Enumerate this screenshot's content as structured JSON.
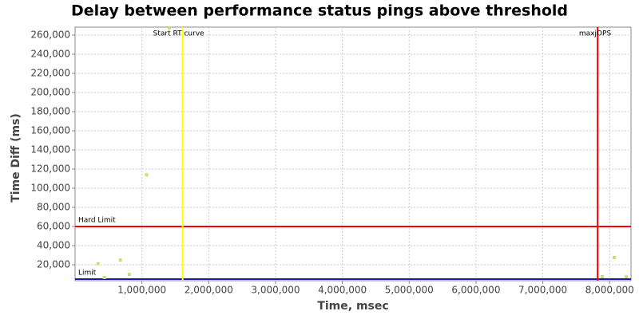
{
  "chart_data": {
    "type": "scatter",
    "title": "Delay between performance status pings above threshold",
    "x_label": "Time, msec",
    "y_label": "Time Diff (ms)",
    "xlim": [
      0,
      8320000
    ],
    "ylim": [
      3333,
      268333
    ],
    "xticks": [
      {
        "value": 1000000,
        "label": "1,000,000"
      },
      {
        "value": 2000000,
        "label": "2,000,000"
      },
      {
        "value": 3000000,
        "label": "3,000,000"
      },
      {
        "value": 4000000,
        "label": "4,000,000"
      },
      {
        "value": 5000000,
        "label": "5,000,000"
      },
      {
        "value": 6000000,
        "label": "6,000,000"
      },
      {
        "value": 7000000,
        "label": "7,000,000"
      },
      {
        "value": 8000000,
        "label": "8,000,000"
      }
    ],
    "yticks": [
      {
        "value": 20000,
        "label": "20,000"
      },
      {
        "value": 40000,
        "label": "40,000"
      },
      {
        "value": 60000,
        "label": "60,000"
      },
      {
        "value": 80000,
        "label": "80,000"
      },
      {
        "value": 100000,
        "label": "100,000"
      },
      {
        "value": 120000,
        "label": "120,000"
      },
      {
        "value": 140000,
        "label": "140,000"
      },
      {
        "value": 160000,
        "label": "160,000"
      },
      {
        "value": 180000,
        "label": "180,000"
      },
      {
        "value": 200000,
        "label": "200,000"
      },
      {
        "value": 220000,
        "label": "220,000"
      },
      {
        "value": 240000,
        "label": "240,000"
      },
      {
        "value": 260000,
        "label": "260,000"
      }
    ],
    "grid": true,
    "series": [
      {
        "color": "#c8e06e",
        "x": [
          343000,
          439000,
          677000,
          810000,
          1070000,
          1410000,
          7890000,
          8070000,
          8250000
        ],
        "values": [
          21000,
          6700,
          25000,
          10000,
          114000,
          267500,
          7500,
          27500,
          7500
        ]
      }
    ],
    "vlines": [
      {
        "label": "Start RT curve",
        "value": 1610000,
        "color": "#ffff00"
      },
      {
        "label": "maxjOPS",
        "value": 7820000,
        "color": "#ff0000"
      }
    ],
    "hlines": [
      {
        "label": "Hard Limit",
        "value": 60000,
        "color": "#ff0000"
      },
      {
        "label": "Limit",
        "value": 5000,
        "color": "#1a1aa6"
      }
    ]
  }
}
